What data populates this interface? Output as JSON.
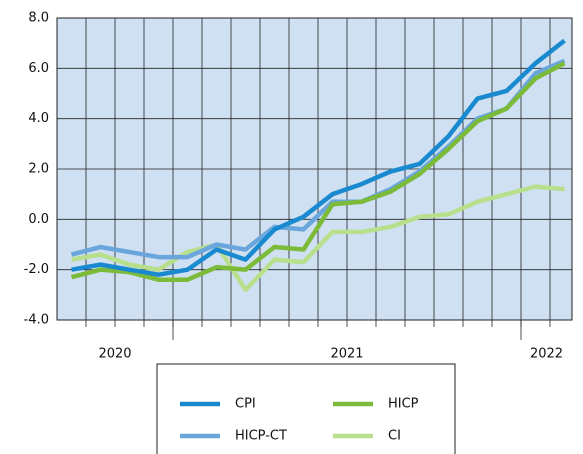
{
  "chart_data": {
    "type": "line",
    "year_groups": [
      {
        "label": "2020",
        "months": 4
      },
      {
        "label": "2021",
        "months": 12
      },
      {
        "label": "2022",
        "months": 2
      }
    ],
    "series": [
      {
        "name": "CPI",
        "color": "#1a8ad0",
        "values": [
          -2.0,
          -1.8,
          -2.0,
          -2.2,
          -2.0,
          -1.2,
          -1.6,
          -0.4,
          0.1,
          1.0,
          1.4,
          1.9,
          2.2,
          3.3,
          4.8,
          5.1,
          6.2,
          7.1
        ]
      },
      {
        "name": "HICP",
        "color": "#7cbb3a",
        "values": [
          -2.3,
          -2.0,
          -2.1,
          -2.4,
          -2.4,
          -1.9,
          -2.0,
          -1.1,
          -1.2,
          0.6,
          0.7,
          1.1,
          1.8,
          2.8,
          3.9,
          4.4,
          5.6,
          6.2
        ]
      },
      {
        "name": "HICP-CT",
        "color": "#6aa6dc",
        "values": [
          -1.4,
          -1.1,
          -1.3,
          -1.5,
          -1.5,
          -1.0,
          -1.2,
          -0.3,
          -0.4,
          0.7,
          0.7,
          1.2,
          1.9,
          2.9,
          4.0,
          4.4,
          5.8,
          6.3
        ]
      },
      {
        "name": "CI",
        "color": "#b8df8c",
        "values": [
          -1.6,
          -1.4,
          -1.8,
          -2.0,
          -1.3,
          -1.0,
          -2.8,
          -1.6,
          -1.7,
          -0.5,
          -0.5,
          -0.3,
          0.1,
          0.2,
          0.7,
          1.0,
          1.3,
          1.2
        ]
      }
    ],
    "ylim": [
      -4,
      8
    ],
    "yticks": [
      {
        "value": -4,
        "label": "-4.0"
      },
      {
        "value": -2,
        "label": "-2.0"
      },
      {
        "value": 0,
        "label": "0.0"
      },
      {
        "value": 2,
        "label": "2.0"
      },
      {
        "value": 4,
        "label": "4.0"
      },
      {
        "value": 6,
        "label": "6.0"
      },
      {
        "value": 8,
        "label": "8.0"
      }
    ],
    "grid": true,
    "background": "#cfe0f2"
  }
}
